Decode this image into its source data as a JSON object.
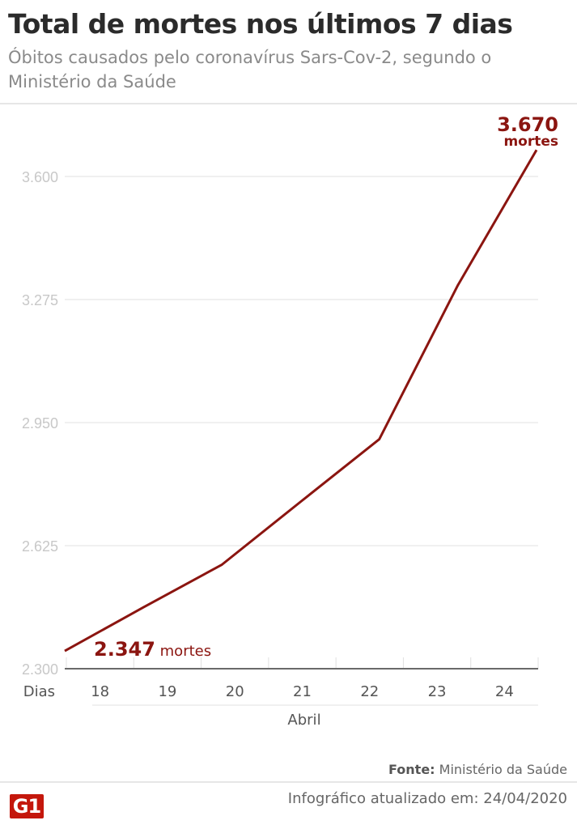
{
  "header": {
    "title": "Total de mortes nos últimos 7 dias",
    "subtitle": "Óbitos causados pelo coronavírus Sars-Cov-2, segundo o Ministério da Saúde"
  },
  "chart_data": {
    "type": "line",
    "x": [
      "18",
      "19",
      "20",
      "21",
      "22",
      "23",
      "24"
    ],
    "values": [
      2347,
      2462,
      2575,
      2741,
      2906,
      3313,
      3670
    ],
    "xlabel": "Dias",
    "xsublabel": "Abril",
    "yticks": [
      2300,
      2625,
      2950,
      3275,
      3600
    ],
    "ytick_labels": [
      "2.300",
      "2.625",
      "2.950",
      "3.275",
      "3.600"
    ],
    "ylim": [
      2300,
      3670
    ],
    "annotations": {
      "first_value": "2.347",
      "first_unit": "mortes",
      "last_value": "3.670",
      "last_unit": "mortes"
    },
    "line_color": "#8b1510",
    "grid": true
  },
  "footer": {
    "source_label": "Fonte:",
    "source": "Ministério da Saúde",
    "updated": "Infográfico atualizado em: 24/04/2020",
    "logo": "G1"
  }
}
